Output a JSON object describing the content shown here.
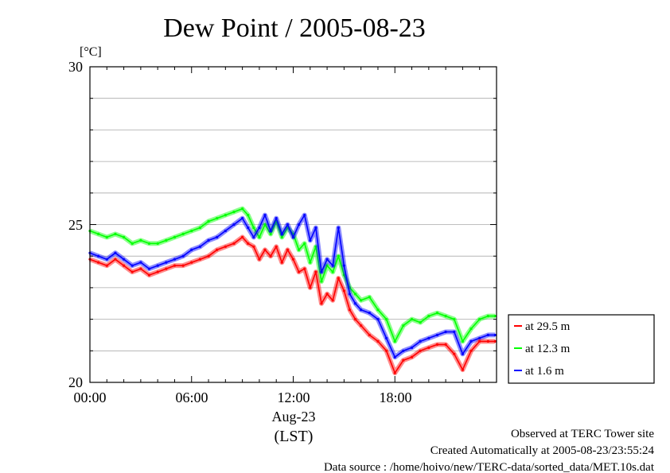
{
  "chart_data": {
    "type": "line",
    "title": "Dew Point / 2005-08-23",
    "ylabel": "[°C]",
    "ylim": [
      20,
      30
    ],
    "y_ticks": [
      "30",
      "25",
      "20"
    ],
    "x_ticks": [
      "00:00",
      "06:00",
      "12:00",
      "18:00"
    ],
    "x_date_label": "Aug-23",
    "x_zone_label": "(LST)",
    "xlim": [
      "00:00",
      "24:00"
    ],
    "grid": true,
    "legend_position": "right",
    "series": [
      {
        "name": "at 29.5 m",
        "color": "#ff0000",
        "points": [
          [
            "00:00",
            23.9
          ],
          [
            "00:30",
            23.8
          ],
          [
            "01:00",
            23.7
          ],
          [
            "01:30",
            23.9
          ],
          [
            "02:00",
            23.7
          ],
          [
            "02:30",
            23.5
          ],
          [
            "03:00",
            23.6
          ],
          [
            "03:30",
            23.4
          ],
          [
            "04:00",
            23.5
          ],
          [
            "04:30",
            23.6
          ],
          [
            "05:00",
            23.7
          ],
          [
            "05:30",
            23.7
          ],
          [
            "06:00",
            23.8
          ],
          [
            "06:30",
            23.9
          ],
          [
            "07:00",
            24.0
          ],
          [
            "07:30",
            24.2
          ],
          [
            "08:00",
            24.3
          ],
          [
            "08:30",
            24.4
          ],
          [
            "09:00",
            24.6
          ],
          [
            "09:20",
            24.4
          ],
          [
            "09:40",
            24.3
          ],
          [
            "10:00",
            23.9
          ],
          [
            "10:20",
            24.2
          ],
          [
            "10:40",
            24.0
          ],
          [
            "11:00",
            24.3
          ],
          [
            "11:20",
            23.8
          ],
          [
            "11:40",
            24.2
          ],
          [
            "12:00",
            23.9
          ],
          [
            "12:20",
            23.5
          ],
          [
            "12:40",
            23.6
          ],
          [
            "13:00",
            23.0
          ],
          [
            "13:20",
            23.5
          ],
          [
            "13:40",
            22.5
          ],
          [
            "14:00",
            22.8
          ],
          [
            "14:20",
            22.6
          ],
          [
            "14:40",
            23.3
          ],
          [
            "15:00",
            22.9
          ],
          [
            "15:20",
            22.3
          ],
          [
            "15:40",
            22.0
          ],
          [
            "16:00",
            21.8
          ],
          [
            "16:30",
            21.5
          ],
          [
            "17:00",
            21.3
          ],
          [
            "17:30",
            21.0
          ],
          [
            "18:00",
            20.3
          ],
          [
            "18:30",
            20.7
          ],
          [
            "19:00",
            20.8
          ],
          [
            "19:30",
            21.0
          ],
          [
            "20:00",
            21.1
          ],
          [
            "20:30",
            21.2
          ],
          [
            "21:00",
            21.2
          ],
          [
            "21:30",
            20.9
          ],
          [
            "22:00",
            20.4
          ],
          [
            "22:30",
            21.0
          ],
          [
            "23:00",
            21.3
          ],
          [
            "23:30",
            21.3
          ],
          [
            "23:55",
            21.3
          ]
        ]
      },
      {
        "name": "at 12.3 m",
        "color": "#00ff00",
        "points": [
          [
            "00:00",
            24.8
          ],
          [
            "00:30",
            24.7
          ],
          [
            "01:00",
            24.6
          ],
          [
            "01:30",
            24.7
          ],
          [
            "02:00",
            24.6
          ],
          [
            "02:30",
            24.4
          ],
          [
            "03:00",
            24.5
          ],
          [
            "03:30",
            24.4
          ],
          [
            "04:00",
            24.4
          ],
          [
            "04:30",
            24.5
          ],
          [
            "05:00",
            24.6
          ],
          [
            "05:30",
            24.7
          ],
          [
            "06:00",
            24.8
          ],
          [
            "06:30",
            24.9
          ],
          [
            "07:00",
            25.1
          ],
          [
            "07:30",
            25.2
          ],
          [
            "08:00",
            25.3
          ],
          [
            "08:30",
            25.4
          ],
          [
            "09:00",
            25.5
          ],
          [
            "09:20",
            25.3
          ],
          [
            "09:40",
            24.9
          ],
          [
            "10:00",
            24.6
          ],
          [
            "10:20",
            25.0
          ],
          [
            "10:40",
            24.7
          ],
          [
            "11:00",
            25.1
          ],
          [
            "11:20",
            24.6
          ],
          [
            "11:40",
            24.9
          ],
          [
            "12:00",
            24.7
          ],
          [
            "12:20",
            24.2
          ],
          [
            "12:40",
            24.4
          ],
          [
            "13:00",
            23.8
          ],
          [
            "13:20",
            24.3
          ],
          [
            "13:40",
            23.2
          ],
          [
            "14:00",
            23.7
          ],
          [
            "14:20",
            23.5
          ],
          [
            "14:40",
            24.0
          ],
          [
            "15:00",
            23.4
          ],
          [
            "15:20",
            23.0
          ],
          [
            "15:40",
            22.8
          ],
          [
            "16:00",
            22.6
          ],
          [
            "16:30",
            22.7
          ],
          [
            "17:00",
            22.3
          ],
          [
            "17:30",
            22.0
          ],
          [
            "18:00",
            21.3
          ],
          [
            "18:30",
            21.8
          ],
          [
            "19:00",
            22.0
          ],
          [
            "19:30",
            21.9
          ],
          [
            "20:00",
            22.1
          ],
          [
            "20:30",
            22.2
          ],
          [
            "21:00",
            22.1
          ],
          [
            "21:30",
            22.0
          ],
          [
            "22:00",
            21.3
          ],
          [
            "22:30",
            21.7
          ],
          [
            "23:00",
            22.0
          ],
          [
            "23:30",
            22.1
          ],
          [
            "23:55",
            22.1
          ]
        ]
      },
      {
        "name": "at 1.6 m",
        "color": "#0000ff",
        "points": [
          [
            "00:00",
            24.1
          ],
          [
            "00:30",
            24.0
          ],
          [
            "01:00",
            23.9
          ],
          [
            "01:30",
            24.1
          ],
          [
            "02:00",
            23.9
          ],
          [
            "02:30",
            23.7
          ],
          [
            "03:00",
            23.8
          ],
          [
            "03:30",
            23.6
          ],
          [
            "04:00",
            23.7
          ],
          [
            "04:30",
            23.8
          ],
          [
            "05:00",
            23.9
          ],
          [
            "05:30",
            24.0
          ],
          [
            "06:00",
            24.2
          ],
          [
            "06:30",
            24.3
          ],
          [
            "07:00",
            24.5
          ],
          [
            "07:30",
            24.6
          ],
          [
            "08:00",
            24.8
          ],
          [
            "08:30",
            25.0
          ],
          [
            "09:00",
            25.2
          ],
          [
            "09:20",
            24.9
          ],
          [
            "09:40",
            24.6
          ],
          [
            "10:00",
            24.9
          ],
          [
            "10:20",
            25.3
          ],
          [
            "10:40",
            24.8
          ],
          [
            "11:00",
            25.2
          ],
          [
            "11:20",
            24.7
          ],
          [
            "11:40",
            25.0
          ],
          [
            "12:00",
            24.6
          ],
          [
            "12:20",
            25.0
          ],
          [
            "12:40",
            25.3
          ],
          [
            "13:00",
            24.5
          ],
          [
            "13:20",
            24.9
          ],
          [
            "13:40",
            23.5
          ],
          [
            "14:00",
            23.9
          ],
          [
            "14:20",
            23.7
          ],
          [
            "14:40",
            24.9
          ],
          [
            "15:00",
            23.7
          ],
          [
            "15:20",
            22.8
          ],
          [
            "15:40",
            22.5
          ],
          [
            "16:00",
            22.3
          ],
          [
            "16:30",
            22.2
          ],
          [
            "17:00",
            22.0
          ],
          [
            "17:30",
            21.4
          ],
          [
            "18:00",
            20.8
          ],
          [
            "18:30",
            21.0
          ],
          [
            "19:00",
            21.1
          ],
          [
            "19:30",
            21.3
          ],
          [
            "20:00",
            21.4
          ],
          [
            "20:30",
            21.5
          ],
          [
            "21:00",
            21.6
          ],
          [
            "21:30",
            21.6
          ],
          [
            "22:00",
            20.9
          ],
          [
            "22:30",
            21.3
          ],
          [
            "23:00",
            21.4
          ],
          [
            "23:30",
            21.5
          ],
          [
            "23:55",
            21.5
          ]
        ]
      }
    ]
  },
  "footer": {
    "line1": "Observed at TERC Tower site",
    "line2": "Created Automatically at 2005-08-23/23:55:24",
    "line3": "Data source : /home/hoivo/new/TERC-data/sorted_data/MET.10s.dat"
  }
}
